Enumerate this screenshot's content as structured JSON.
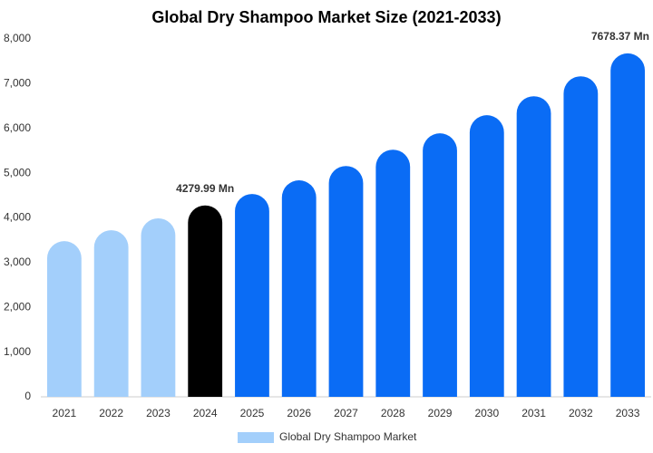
{
  "chart_data": {
    "type": "bar",
    "title": "Global Dry Shampoo Market Size (2021-2033)",
    "categories": [
      "2021",
      "2022",
      "2023",
      "2024",
      "2025",
      "2026",
      "2027",
      "2028",
      "2029",
      "2030",
      "2031",
      "2032",
      "2033"
    ],
    "series": [
      {
        "name": "Global Dry Shampoo Market",
        "color": "#a3cffb",
        "values": [
          3480,
          3725,
          3990,
          4279.99,
          4535,
          4840,
          5160,
          5525,
          5890,
          6295,
          6720,
          7165,
          7678.37
        ],
        "value_labels": [
          null,
          null,
          null,
          "4279.99 Mn",
          null,
          null,
          null,
          null,
          null,
          null,
          null,
          null,
          "7678.37 Mn"
        ],
        "colors": [
          "#a3cffb",
          "#a3cffb",
          "#a3cffb",
          "#000000",
          "#0a6cf5",
          "#0a6cf5",
          "#0a6cf5",
          "#0a6cf5",
          "#0a6cf5",
          "#0a6cf5",
          "#0a6cf5",
          "#0a6cf5",
          "#0a6cf5"
        ]
      }
    ],
    "ylim": [
      0,
      8000
    ],
    "yticks": [
      0,
      {
        "value": 1000,
        "label": "1,000"
      },
      {
        "value": 2000,
        "label": "2,000"
      },
      {
        "value": 3000,
        "label": "3,000"
      },
      {
        "value": 4000,
        "label": "4,000"
      },
      {
        "value": 5000,
        "label": "5,000"
      },
      {
        "value": 6000,
        "label": "6,000"
      },
      {
        "value": 7000,
        "label": "7,000"
      },
      {
        "value": 8000,
        "label": "8,000"
      }
    ],
    "grid": false
  }
}
